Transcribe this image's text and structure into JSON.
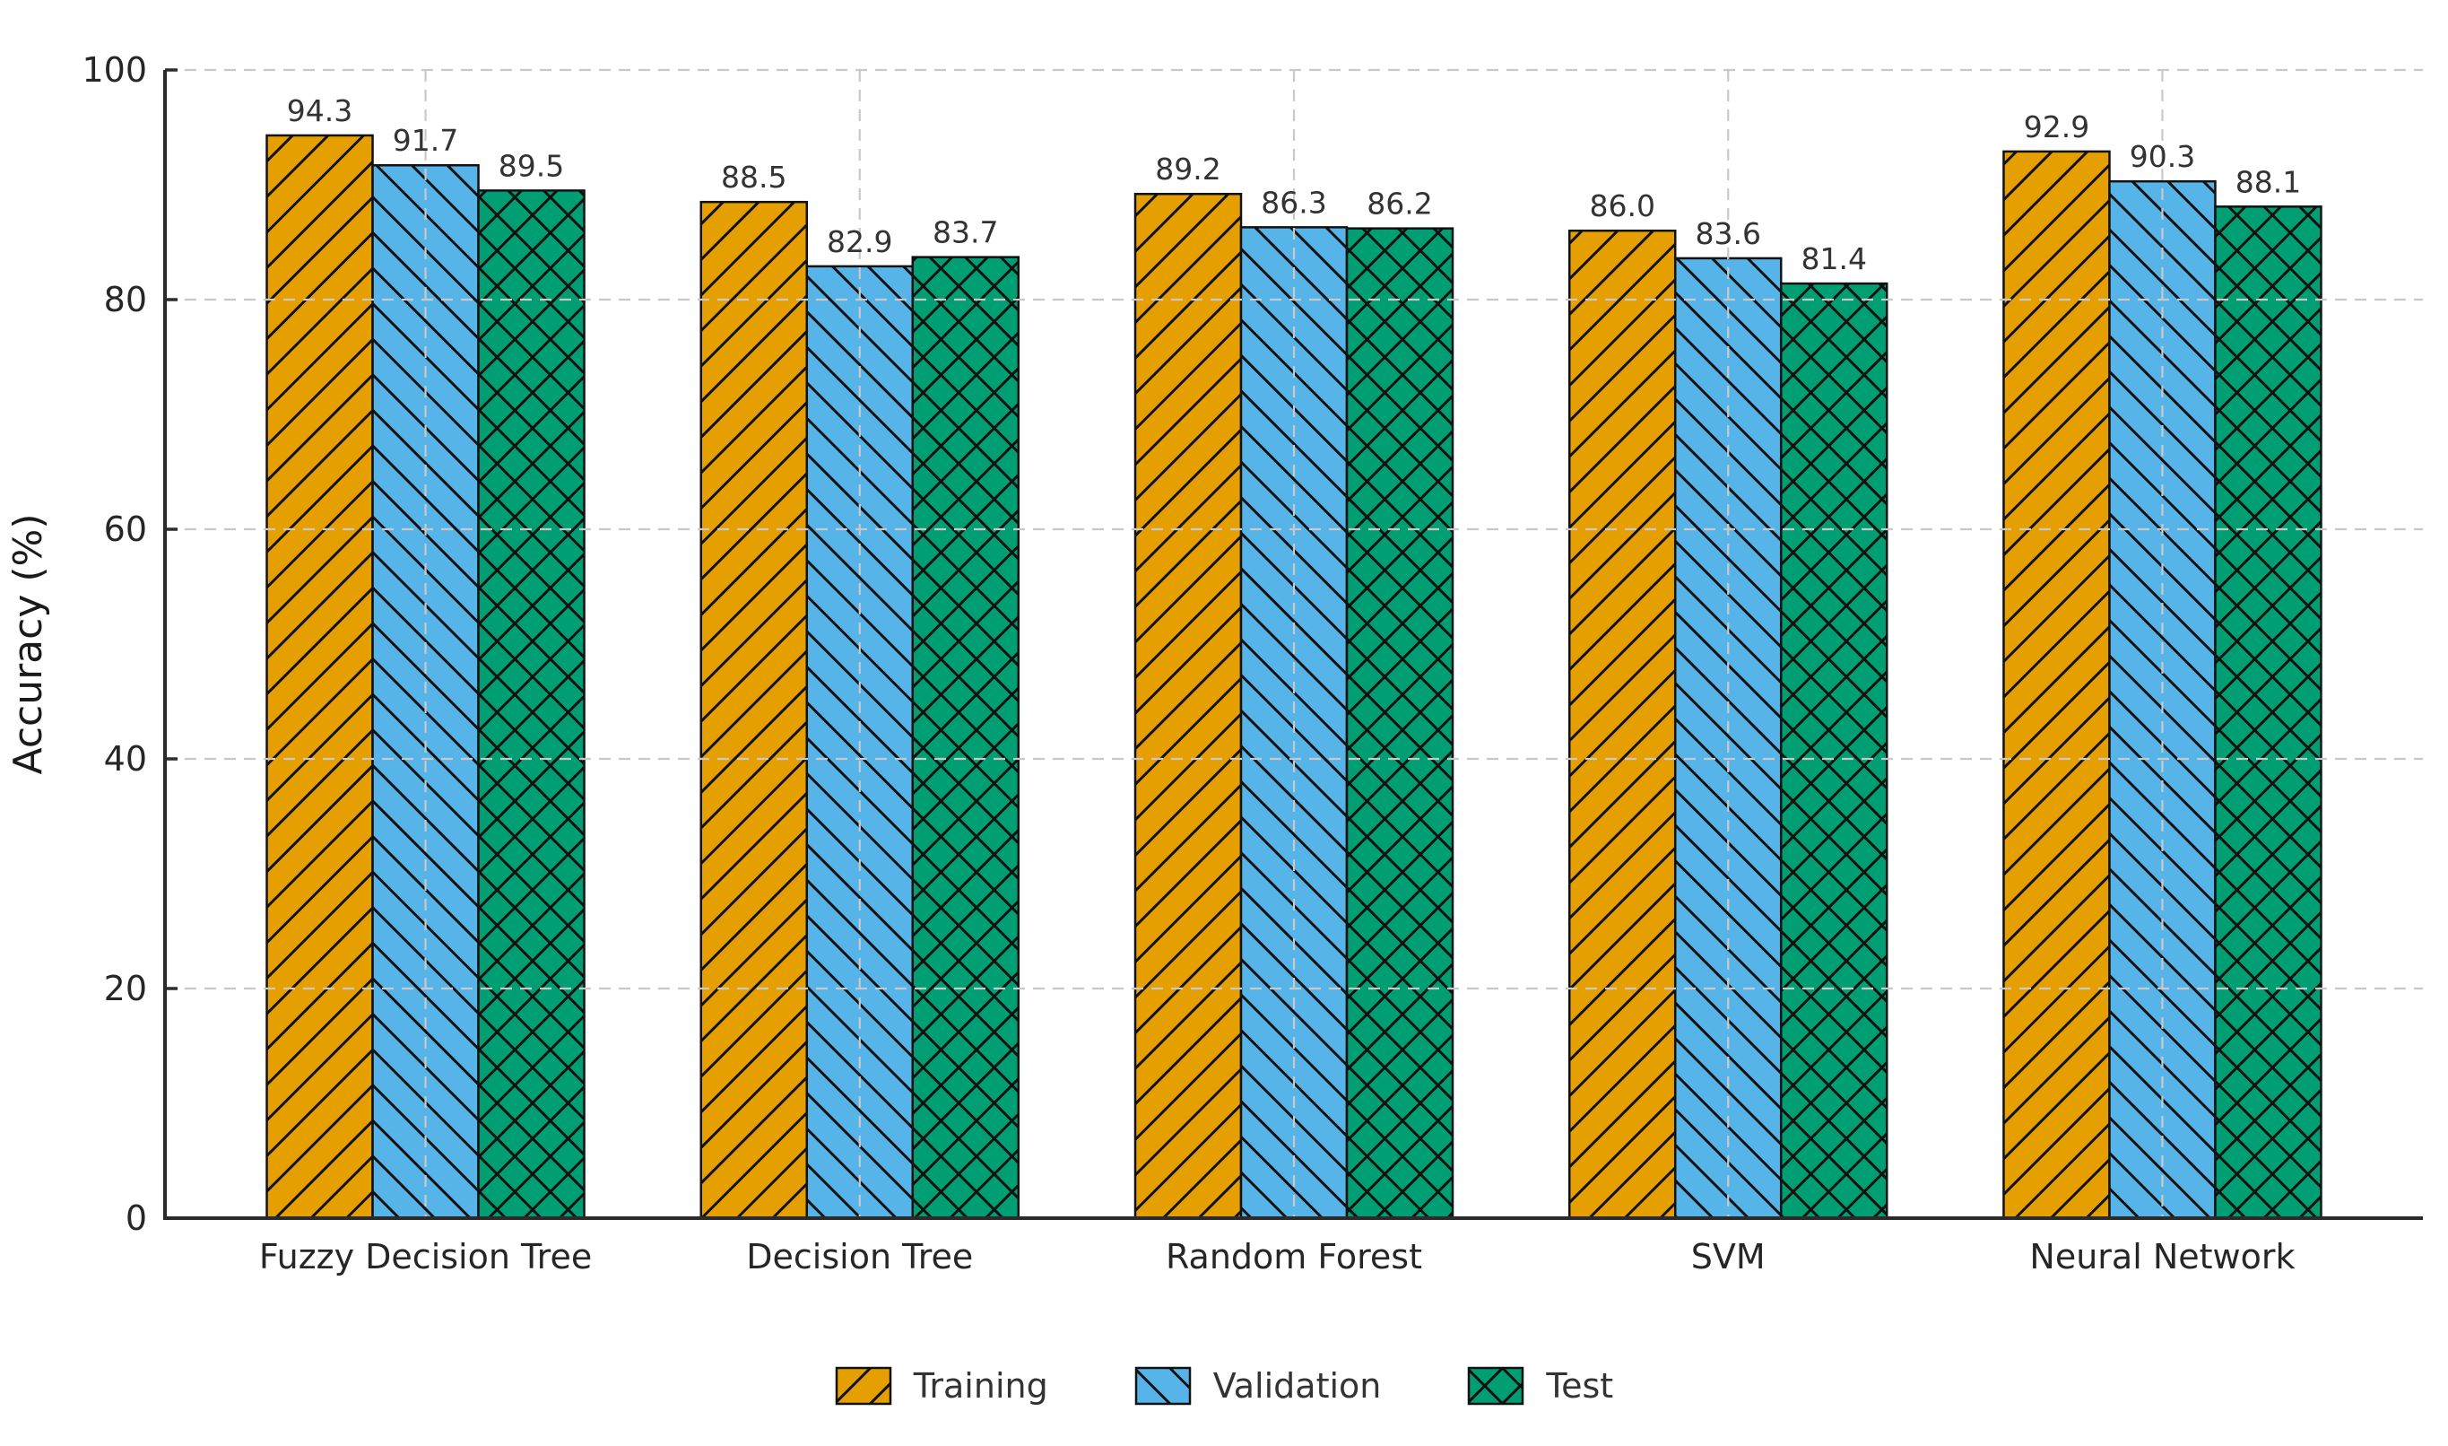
{
  "chart_data": {
    "type": "bar",
    "title": "",
    "categories": [
      "Fuzzy Decision Tree",
      "Decision Tree",
      "Random Forest",
      "SVM",
      "Neural Network"
    ],
    "series": [
      {
        "name": "Training",
        "color": "#E69F00",
        "hatch": "forward-diagonal",
        "values": [
          94.3,
          88.5,
          89.2,
          86.0,
          92.9
        ]
      },
      {
        "name": "Validation",
        "color": "#56B4E9",
        "hatch": "backward-diagonal",
        "values": [
          91.7,
          82.9,
          86.3,
          83.6,
          90.3
        ]
      },
      {
        "name": "Test",
        "color": "#009E73",
        "hatch": "cross-diagonal",
        "values": [
          89.5,
          83.7,
          86.2,
          81.4,
          88.1
        ]
      }
    ],
    "xlabel": "",
    "ylabel": "Accuracy (%)",
    "ylim": [
      0,
      100
    ],
    "yticks": [
      0,
      20,
      40,
      60,
      80,
      100
    ],
    "value_label_decimals": 1,
    "grid": true,
    "grid_style": "dashed",
    "grid_above_bars": true,
    "legend_position": "bottom-center",
    "colors": {
      "hatch": "#111111",
      "bar_edge": "#111111",
      "grid": "#c9c9c9",
      "spine": "#2b2b2b",
      "tick": "#2b2b2b",
      "tick_label": "#262626",
      "value_label": "#333333",
      "background": "#ffffff"
    }
  }
}
